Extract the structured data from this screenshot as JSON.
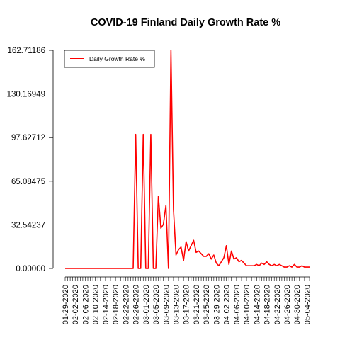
{
  "chart_data": {
    "type": "line",
    "title": "COVID-19 Finland Daily Growth Rate %",
    "xlabel": "",
    "ylabel": "",
    "ylim": [
      0,
      162.71186
    ],
    "y_ticks": [
      "0.00000",
      "32.54237",
      "65.08475",
      "97.62712",
      "130.16949",
      "162.71186"
    ],
    "y_tick_values": [
      0,
      32.54237,
      65.08475,
      97.62712,
      130.16949,
      162.71186
    ],
    "x_tick_labels": [
      "01-29-2020",
      "02-02-2020",
      "02-06-2020",
      "02-10-2020",
      "02-14-2020",
      "02-18-2020",
      "02-22-2020",
      "02-26-2020",
      "03-01-2020",
      "03-05-2020",
      "03-09-2020",
      "03-13-2020",
      "03-17-2020",
      "03-21-2020",
      "03-25-2020",
      "03-29-2020",
      "04-02-2020",
      "04-06-2020",
      "04-10-2020",
      "04-14-2020",
      "04-18-2020",
      "04-22-2020",
      "04-26-2020",
      "04-30-2020",
      "05-04-2020"
    ],
    "legend": {
      "position": "top-left",
      "entries": [
        "Daily Growth Rate %"
      ]
    },
    "series": [
      {
        "name": "Daily Growth Rate %",
        "color": "#ff0000",
        "x": [
          "01-29-2020",
          "01-30-2020",
          "01-31-2020",
          "02-01-2020",
          "02-02-2020",
          "02-03-2020",
          "02-04-2020",
          "02-05-2020",
          "02-06-2020",
          "02-07-2020",
          "02-08-2020",
          "02-09-2020",
          "02-10-2020",
          "02-11-2020",
          "02-12-2020",
          "02-13-2020",
          "02-14-2020",
          "02-15-2020",
          "02-16-2020",
          "02-17-2020",
          "02-18-2020",
          "02-19-2020",
          "02-20-2020",
          "02-21-2020",
          "02-22-2020",
          "02-23-2020",
          "02-24-2020",
          "02-25-2020",
          "02-26-2020",
          "02-27-2020",
          "02-28-2020",
          "02-29-2020",
          "03-01-2020",
          "03-02-2020",
          "03-03-2020",
          "03-04-2020",
          "03-05-2020",
          "03-06-2020",
          "03-07-2020",
          "03-08-2020",
          "03-09-2020",
          "03-10-2020",
          "03-11-2020",
          "03-12-2020",
          "03-13-2020",
          "03-14-2020",
          "03-15-2020",
          "03-16-2020",
          "03-17-2020",
          "03-18-2020",
          "03-19-2020",
          "03-20-2020",
          "03-21-2020",
          "03-22-2020",
          "03-23-2020",
          "03-24-2020",
          "03-25-2020",
          "03-26-2020",
          "03-27-2020",
          "03-28-2020",
          "03-29-2020",
          "03-30-2020",
          "03-31-2020",
          "04-01-2020",
          "04-02-2020",
          "04-03-2020",
          "04-04-2020",
          "04-05-2020",
          "04-06-2020",
          "04-07-2020",
          "04-08-2020",
          "04-09-2020",
          "04-10-2020",
          "04-11-2020",
          "04-12-2020",
          "04-13-2020",
          "04-14-2020",
          "04-15-2020",
          "04-16-2020",
          "04-17-2020",
          "04-18-2020",
          "04-19-2020",
          "04-20-2020",
          "04-21-2020",
          "04-22-2020",
          "04-23-2020",
          "04-24-2020",
          "04-25-2020",
          "04-26-2020",
          "04-27-2020",
          "04-28-2020",
          "04-29-2020",
          "04-30-2020",
          "05-01-2020",
          "05-02-2020",
          "05-03-2020",
          "05-04-2020",
          "05-05-2020"
        ],
        "values": [
          0,
          0,
          0,
          0,
          0,
          0,
          0,
          0,
          0,
          0,
          0,
          0,
          0,
          0,
          0,
          0,
          0,
          0,
          0,
          0,
          0,
          0,
          0,
          0,
          0,
          0,
          0,
          0,
          100,
          0,
          0,
          100,
          0,
          0,
          100,
          0,
          0,
          54,
          30,
          33,
          47,
          0,
          162.7,
          44,
          10,
          14,
          16,
          6,
          20,
          13,
          17,
          21,
          12,
          13,
          11,
          9,
          9,
          11,
          7,
          10,
          4,
          2,
          5,
          8,
          17,
          3,
          13,
          7,
          8,
          5,
          6,
          4,
          2,
          2,
          2,
          2,
          3,
          2,
          4,
          3,
          5,
          3,
          2,
          3,
          2,
          3,
          2,
          1,
          1,
          2,
          1,
          3,
          1,
          1,
          2,
          1,
          1,
          1
        ]
      }
    ]
  }
}
